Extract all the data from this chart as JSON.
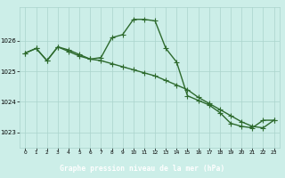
{
  "line1_x": [
    0,
    1,
    2,
    3,
    4,
    5,
    6,
    7,
    8,
    9,
    10,
    11,
    12,
    13,
    14,
    15,
    16,
    17,
    18,
    19,
    20,
    21,
    22,
    23
  ],
  "line1_y": [
    1025.6,
    1025.75,
    1025.35,
    1025.8,
    1025.7,
    1025.55,
    1025.4,
    1025.45,
    1026.1,
    1026.2,
    1026.7,
    1026.7,
    1026.65,
    1025.75,
    1025.3,
    1024.2,
    1024.05,
    1023.9,
    1023.65,
    1023.3,
    1023.2,
    1023.15,
    1023.4,
    1023.4
  ],
  "line2_x": [
    0,
    1,
    2,
    3,
    4,
    5,
    6,
    7,
    8,
    9,
    10,
    11,
    12,
    13,
    14,
    15,
    16,
    17,
    18,
    19,
    20,
    21,
    22,
    23
  ],
  "line2_y": [
    1025.6,
    1025.75,
    1025.35,
    1025.8,
    1025.65,
    1025.5,
    1025.4,
    1025.35,
    1025.25,
    1025.15,
    1025.05,
    1024.95,
    1024.85,
    1024.7,
    1024.55,
    1024.4,
    1024.15,
    1023.95,
    1023.75,
    1023.55,
    1023.35,
    1023.2,
    1023.15,
    1023.4
  ],
  "line_color": "#2d6a2d",
  "bg_color": "#cceee8",
  "grid_color": "#aad4cc",
  "xlabel": "Graphe pression niveau de la mer (hPa)",
  "xlabel_bg": "#2d6a2d",
  "xlabel_color": "#ffffff",
  "ylim": [
    1022.5,
    1027.1
  ],
  "xlim": [
    -0.5,
    23.5
  ],
  "yticks": [
    1023,
    1024,
    1025,
    1026
  ],
  "xticks": [
    0,
    1,
    2,
    3,
    4,
    5,
    6,
    7,
    8,
    9,
    10,
    11,
    12,
    13,
    14,
    15,
    16,
    17,
    18,
    19,
    20,
    21,
    22,
    23
  ],
  "markersize": 2.5,
  "linewidth": 1.0
}
